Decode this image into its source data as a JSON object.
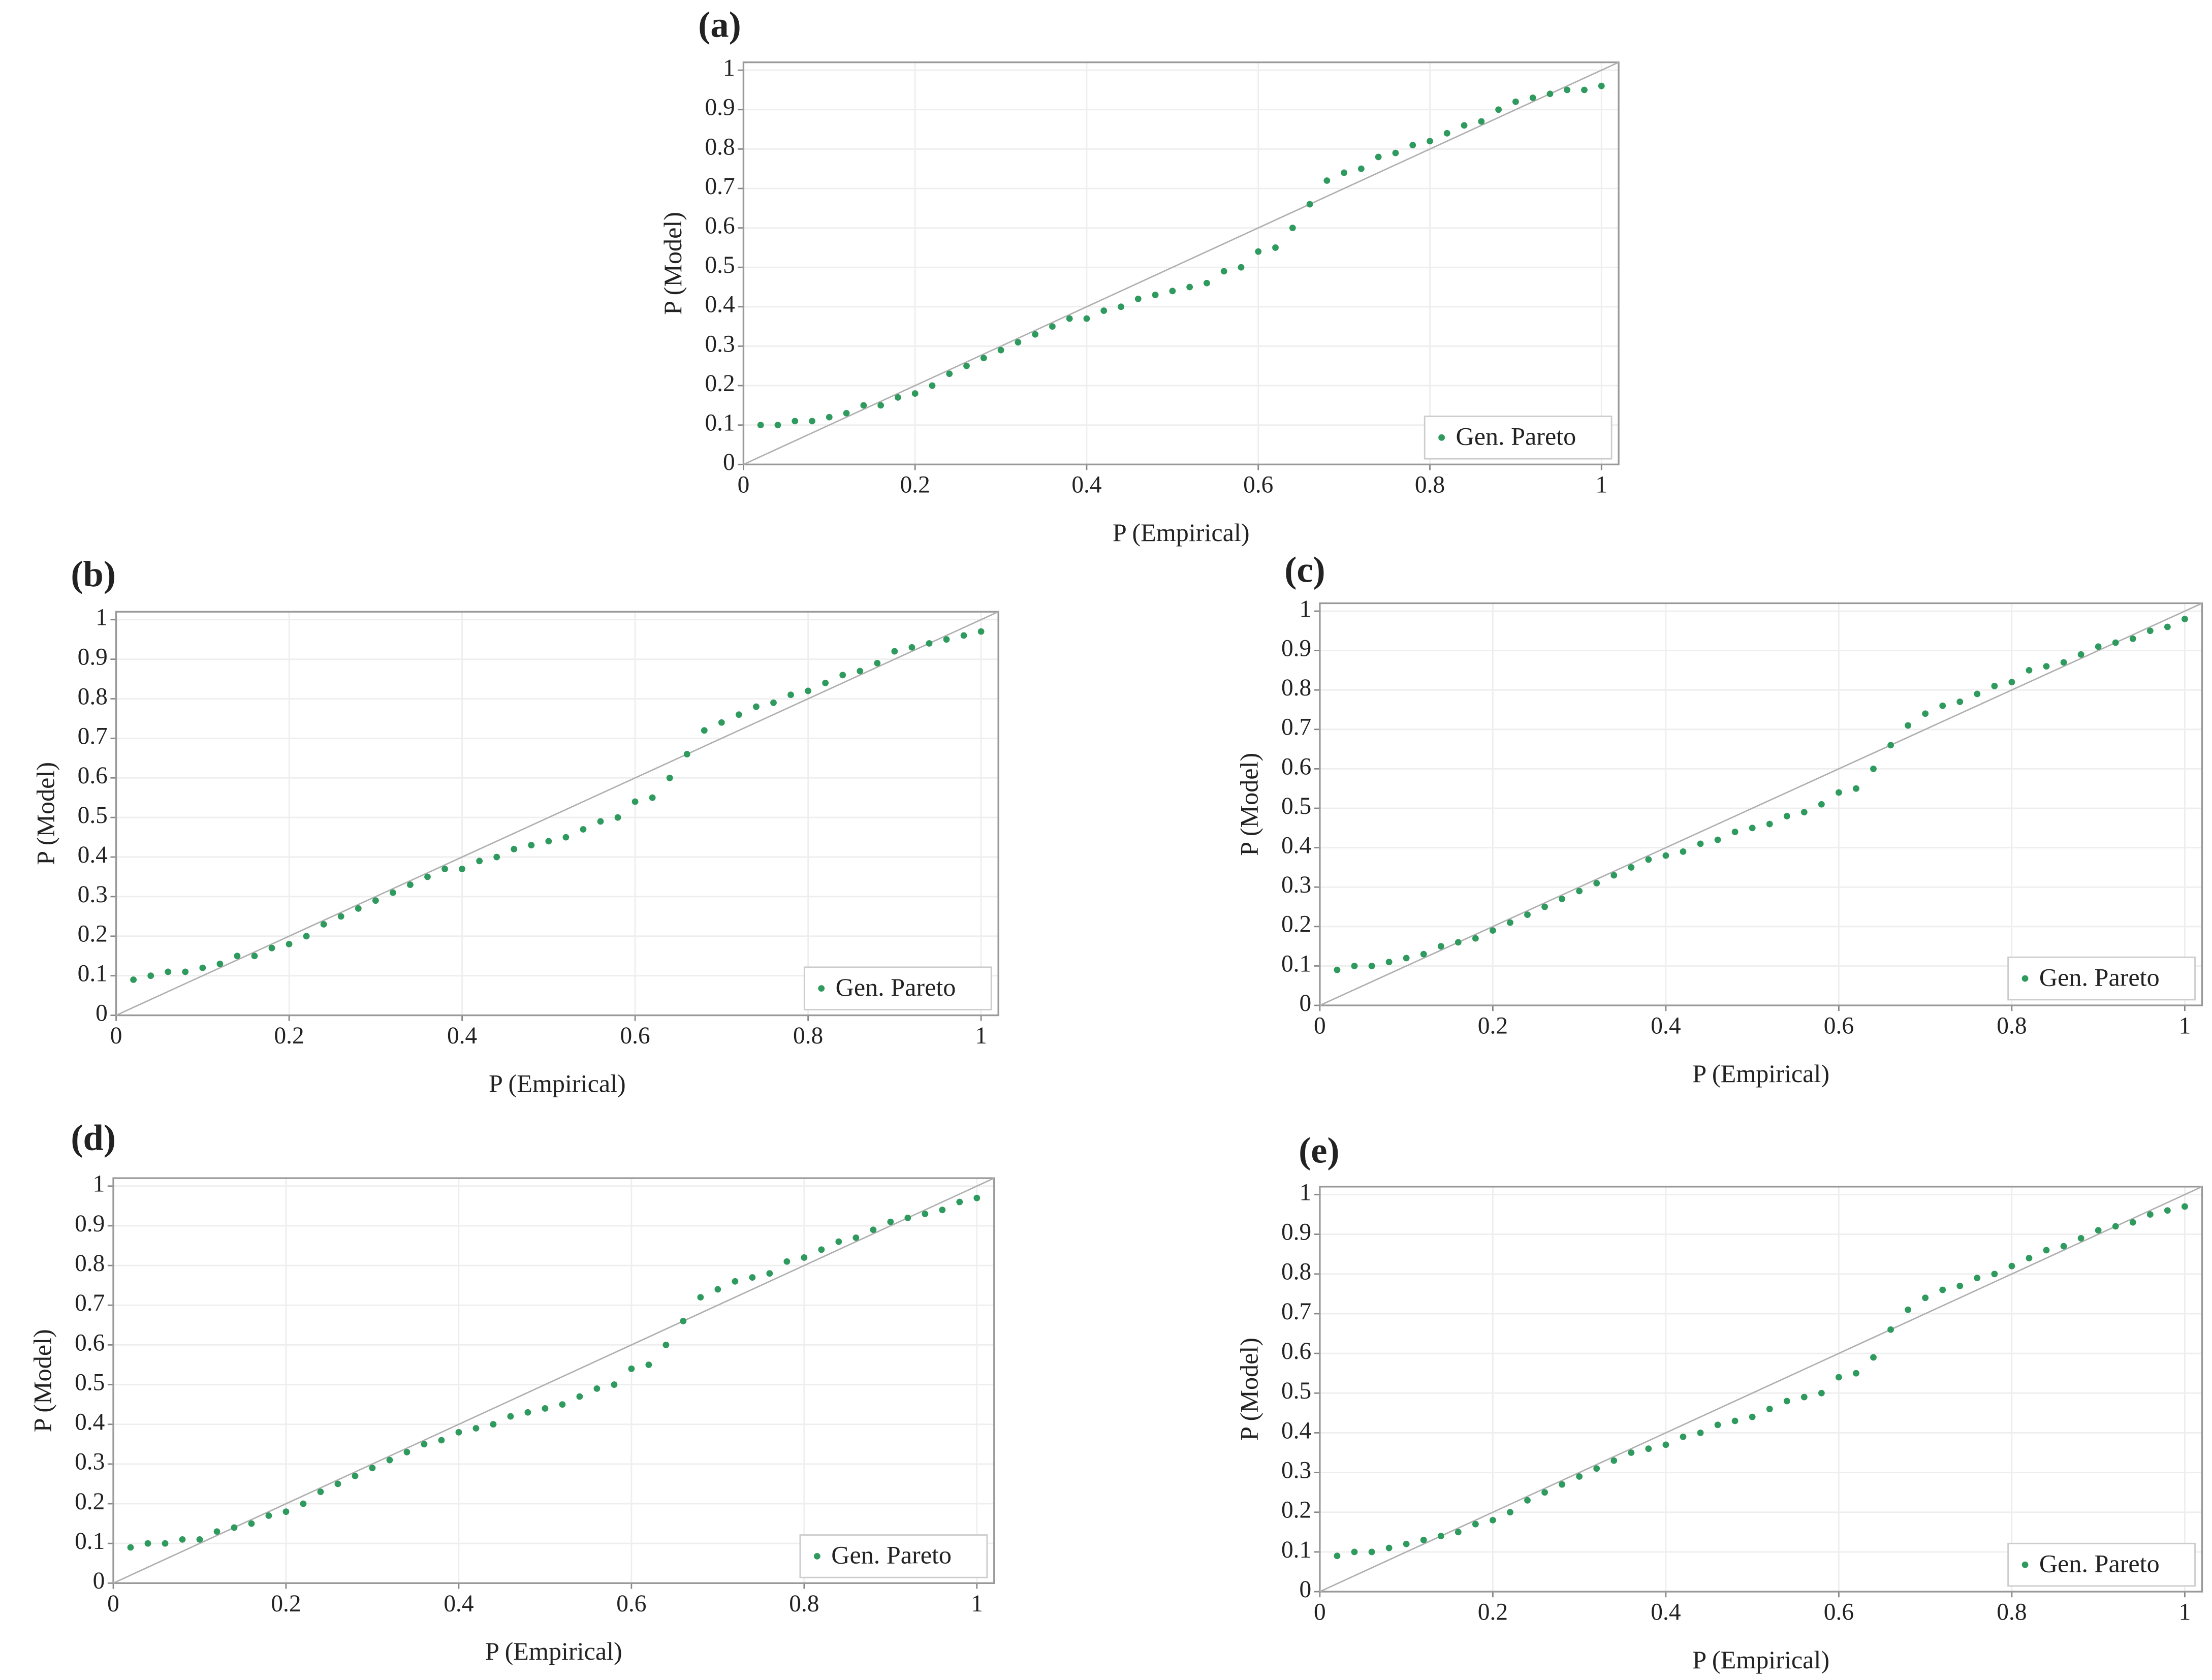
{
  "chart_data": [
    {
      "type": "scatter",
      "title": "(a)",
      "xlabel": "P (Empirical)",
      "ylabel": "P (Model)",
      "xlim": [
        0,
        1.02
      ],
      "ylim": [
        0,
        1.02
      ],
      "xticks": [
        0,
        0.2,
        0.4,
        0.6,
        0.8,
        1
      ],
      "yticks": [
        0,
        0.1,
        0.2,
        0.3,
        0.4,
        0.5,
        0.6,
        0.7,
        0.8,
        0.9,
        1
      ],
      "grid": true,
      "legend": "lower right",
      "x": [
        0.02,
        0.04,
        0.06,
        0.08,
        0.1,
        0.12,
        0.14,
        0.16,
        0.18,
        0.2,
        0.22,
        0.24,
        0.26,
        0.28,
        0.3,
        0.32,
        0.34,
        0.36,
        0.38,
        0.4,
        0.42,
        0.44,
        0.46,
        0.48,
        0.5,
        0.52,
        0.54,
        0.56,
        0.58,
        0.6,
        0.62,
        0.64,
        0.66,
        0.68,
        0.7,
        0.72,
        0.74,
        0.76,
        0.78,
        0.8,
        0.82,
        0.84,
        0.86,
        0.88,
        0.9,
        0.92,
        0.94,
        0.96,
        0.98,
        1
      ],
      "series": [
        {
          "name": "Gen. Pareto",
          "color": "#2e9a5e",
          "values": [
            0.1,
            0.1,
            0.11,
            0.11,
            0.12,
            0.13,
            0.15,
            0.15,
            0.17,
            0.18,
            0.2,
            0.23,
            0.25,
            0.27,
            0.29,
            0.31,
            0.33,
            0.35,
            0.37,
            0.37,
            0.39,
            0.4,
            0.42,
            0.43,
            0.44,
            0.45,
            0.46,
            0.49,
            0.5,
            0.54,
            0.55,
            0.6,
            0.66,
            0.72,
            0.74,
            0.75,
            0.78,
            0.79,
            0.81,
            0.82,
            0.84,
            0.86,
            0.87,
            0.9,
            0.92,
            0.93,
            0.94,
            0.95,
            0.95,
            0.96
          ]
        }
      ]
    },
    {
      "type": "scatter",
      "title": "(b)",
      "xlabel": "P (Empirical)",
      "ylabel": "P (Model)",
      "xlim": [
        0,
        1.02
      ],
      "ylim": [
        0,
        1.02
      ],
      "xticks": [
        0,
        0.2,
        0.4,
        0.6,
        0.8,
        1
      ],
      "yticks": [
        0,
        0.1,
        0.2,
        0.3,
        0.4,
        0.5,
        0.6,
        0.7,
        0.8,
        0.9,
        1
      ],
      "grid": true,
      "legend": "lower right",
      "x": [
        0.02,
        0.04,
        0.06,
        0.08,
        0.1,
        0.12,
        0.14,
        0.16,
        0.18,
        0.2,
        0.22,
        0.24,
        0.26,
        0.28,
        0.3,
        0.32,
        0.34,
        0.36,
        0.38,
        0.4,
        0.42,
        0.44,
        0.46,
        0.48,
        0.5,
        0.52,
        0.54,
        0.56,
        0.58,
        0.6,
        0.62,
        0.64,
        0.66,
        0.68,
        0.7,
        0.72,
        0.74,
        0.76,
        0.78,
        0.8,
        0.82,
        0.84,
        0.86,
        0.88,
        0.9,
        0.92,
        0.94,
        0.96,
        0.98,
        1
      ],
      "series": [
        {
          "name": "Gen. Pareto",
          "color": "#2e9a5e",
          "values": [
            0.09,
            0.1,
            0.11,
            0.11,
            0.12,
            0.13,
            0.15,
            0.15,
            0.17,
            0.18,
            0.2,
            0.23,
            0.25,
            0.27,
            0.29,
            0.31,
            0.33,
            0.35,
            0.37,
            0.37,
            0.39,
            0.4,
            0.42,
            0.43,
            0.44,
            0.45,
            0.47,
            0.49,
            0.5,
            0.54,
            0.55,
            0.6,
            0.66,
            0.72,
            0.74,
            0.76,
            0.78,
            0.79,
            0.81,
            0.82,
            0.84,
            0.86,
            0.87,
            0.89,
            0.92,
            0.93,
            0.94,
            0.95,
            0.96,
            0.97
          ]
        }
      ]
    },
    {
      "type": "scatter",
      "title": "(c)",
      "xlabel": "P (Empirical)",
      "ylabel": "P (Model)",
      "xlim": [
        0,
        1.02
      ],
      "ylim": [
        0,
        1.02
      ],
      "xticks": [
        0,
        0.2,
        0.4,
        0.6,
        0.8,
        1
      ],
      "yticks": [
        0,
        0.1,
        0.2,
        0.3,
        0.4,
        0.5,
        0.6,
        0.7,
        0.8,
        0.9,
        1
      ],
      "grid": true,
      "legend": "lower right",
      "x": [
        0.02,
        0.04,
        0.06,
        0.08,
        0.1,
        0.12,
        0.14,
        0.16,
        0.18,
        0.2,
        0.22,
        0.24,
        0.26,
        0.28,
        0.3,
        0.32,
        0.34,
        0.36,
        0.38,
        0.4,
        0.42,
        0.44,
        0.46,
        0.48,
        0.5,
        0.52,
        0.54,
        0.56,
        0.58,
        0.6,
        0.62,
        0.64,
        0.66,
        0.68,
        0.7,
        0.72,
        0.74,
        0.76,
        0.78,
        0.8,
        0.82,
        0.84,
        0.86,
        0.88,
        0.9,
        0.92,
        0.94,
        0.96,
        0.98,
        1
      ],
      "series": [
        {
          "name": "Gen. Pareto",
          "color": "#2e9a5e",
          "values": [
            0.09,
            0.1,
            0.1,
            0.11,
            0.12,
            0.13,
            0.15,
            0.16,
            0.17,
            0.19,
            0.21,
            0.23,
            0.25,
            0.27,
            0.29,
            0.31,
            0.33,
            0.35,
            0.37,
            0.38,
            0.39,
            0.41,
            0.42,
            0.44,
            0.45,
            0.46,
            0.48,
            0.49,
            0.51,
            0.54,
            0.55,
            0.6,
            0.66,
            0.71,
            0.74,
            0.76,
            0.77,
            0.79,
            0.81,
            0.82,
            0.85,
            0.86,
            0.87,
            0.89,
            0.91,
            0.92,
            0.93,
            0.95,
            0.96,
            0.98
          ]
        }
      ]
    },
    {
      "type": "scatter",
      "title": "(d)",
      "xlabel": "P (Empirical)",
      "ylabel": "P (Model)",
      "xlim": [
        0,
        1.02
      ],
      "ylim": [
        0,
        1.02
      ],
      "xticks": [
        0,
        0.2,
        0.4,
        0.6,
        0.8,
        1
      ],
      "yticks": [
        0,
        0.1,
        0.2,
        0.3,
        0.4,
        0.5,
        0.6,
        0.7,
        0.8,
        0.9,
        1
      ],
      "grid": true,
      "legend": "lower right",
      "x": [
        0.02,
        0.04,
        0.06,
        0.08,
        0.1,
        0.12,
        0.14,
        0.16,
        0.18,
        0.2,
        0.22,
        0.24,
        0.26,
        0.28,
        0.3,
        0.32,
        0.34,
        0.36,
        0.38,
        0.4,
        0.42,
        0.44,
        0.46,
        0.48,
        0.5,
        0.52,
        0.54,
        0.56,
        0.58,
        0.6,
        0.62,
        0.64,
        0.66,
        0.68,
        0.7,
        0.72,
        0.74,
        0.76,
        0.78,
        0.8,
        0.82,
        0.84,
        0.86,
        0.88,
        0.9,
        0.92,
        0.94,
        0.96,
        0.98,
        1
      ],
      "series": [
        {
          "name": "Gen. Pareto",
          "color": "#2e9a5e",
          "values": [
            0.09,
            0.1,
            0.1,
            0.11,
            0.11,
            0.13,
            0.14,
            0.15,
            0.17,
            0.18,
            0.2,
            0.23,
            0.25,
            0.27,
            0.29,
            0.31,
            0.33,
            0.35,
            0.36,
            0.38,
            0.39,
            0.4,
            0.42,
            0.43,
            0.44,
            0.45,
            0.47,
            0.49,
            0.5,
            0.54,
            0.55,
            0.6,
            0.66,
            0.72,
            0.74,
            0.76,
            0.77,
            0.78,
            0.81,
            0.82,
            0.84,
            0.86,
            0.87,
            0.89,
            0.91,
            0.92,
            0.93,
            0.94,
            0.96,
            0.97
          ]
        }
      ]
    },
    {
      "type": "scatter",
      "title": "(e)",
      "xlabel": "P (Empirical)",
      "ylabel": "P (Model)",
      "xlim": [
        0,
        1.02
      ],
      "ylim": [
        0,
        1.02
      ],
      "xticks": [
        0,
        0.2,
        0.4,
        0.6,
        0.8,
        1
      ],
      "yticks": [
        0,
        0.1,
        0.2,
        0.3,
        0.4,
        0.5,
        0.6,
        0.7,
        0.8,
        0.9,
        1
      ],
      "grid": true,
      "legend": "lower right",
      "x": [
        0.02,
        0.04,
        0.06,
        0.08,
        0.1,
        0.12,
        0.14,
        0.16,
        0.18,
        0.2,
        0.22,
        0.24,
        0.26,
        0.28,
        0.3,
        0.32,
        0.34,
        0.36,
        0.38,
        0.4,
        0.42,
        0.44,
        0.46,
        0.48,
        0.5,
        0.52,
        0.54,
        0.56,
        0.58,
        0.6,
        0.62,
        0.64,
        0.66,
        0.68,
        0.7,
        0.72,
        0.74,
        0.76,
        0.78,
        0.8,
        0.82,
        0.84,
        0.86,
        0.88,
        0.9,
        0.92,
        0.94,
        0.96,
        0.98,
        1
      ],
      "series": [
        {
          "name": "Gen. Pareto",
          "color": "#2e9a5e",
          "values": [
            0.09,
            0.1,
            0.1,
            0.11,
            0.12,
            0.13,
            0.14,
            0.15,
            0.17,
            0.18,
            0.2,
            0.23,
            0.25,
            0.27,
            0.29,
            0.31,
            0.33,
            0.35,
            0.36,
            0.37,
            0.39,
            0.4,
            0.42,
            0.43,
            0.44,
            0.46,
            0.48,
            0.49,
            0.5,
            0.54,
            0.55,
            0.59,
            0.66,
            0.71,
            0.74,
            0.76,
            0.77,
            0.79,
            0.8,
            0.82,
            0.84,
            0.86,
            0.87,
            0.89,
            0.91,
            0.92,
            0.93,
            0.95,
            0.96,
            0.97
          ]
        }
      ]
    }
  ]
}
